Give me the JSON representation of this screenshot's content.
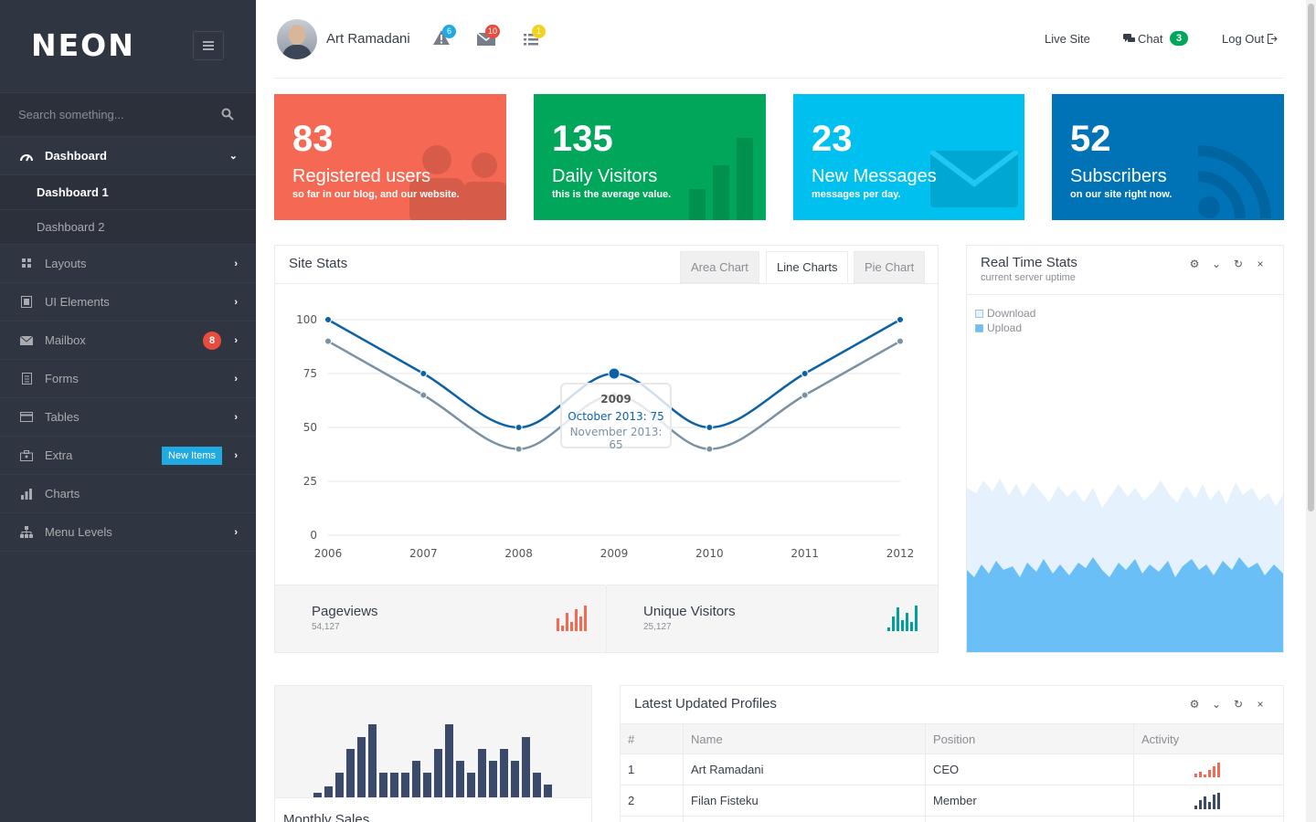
{
  "brand": {
    "logo": "NEON"
  },
  "search": {
    "placeholder": "Search something..."
  },
  "sidebar": {
    "items": [
      {
        "label": "Dashboard"
      },
      {
        "label": "Dashboard 1"
      },
      {
        "label": "Dashboard 2"
      },
      {
        "label": "Layouts"
      },
      {
        "label": "UI Elements"
      },
      {
        "label": "Mailbox",
        "badge": "8"
      },
      {
        "label": "Forms"
      },
      {
        "label": "Tables"
      },
      {
        "label": "Extra",
        "badge": "New Items"
      },
      {
        "label": "Charts"
      },
      {
        "label": "Menu Levels"
      }
    ]
  },
  "header": {
    "user_name": "Art Ramadani",
    "alerts_count": "6",
    "messages_count": "10",
    "tasks_count": "1",
    "live_site": "Live Site",
    "chat": "Chat",
    "chat_count": "3",
    "logout": "Log Out"
  },
  "tiles": [
    {
      "number": "83",
      "title": "Registered users",
      "subtitle": "so far in our blog, and our website.",
      "color": "#f56954"
    },
    {
      "number": "135",
      "title": "Daily Visitors",
      "subtitle": "this is the average value.",
      "color": "#00a65a"
    },
    {
      "number": "23",
      "title": "New Messages",
      "subtitle": "messages per day.",
      "color": "#00c0ef"
    },
    {
      "number": "52",
      "title": "Subscribers",
      "subtitle": "on our site right now.",
      "color": "#0073b7"
    }
  ],
  "site_stats": {
    "title": "Site Stats",
    "tabs": [
      "Area Chart",
      "Line Charts",
      "Pie Chart"
    ],
    "active_tab": "Line Charts",
    "tooltip": {
      "title": "2009",
      "line1": "October 2013: 75",
      "line2": "November 2013: 65"
    },
    "pageviews_label": "Pageviews",
    "pageviews_value": "54,127",
    "unique_label": "Unique Visitors",
    "unique_value": "25,127"
  },
  "chart_data": {
    "type": "line",
    "x": [
      "2006",
      "2007",
      "2008",
      "2009",
      "2010",
      "2011",
      "2012"
    ],
    "y_ticks": [
      "100",
      "75",
      "50",
      "25",
      "0"
    ],
    "ylim": [
      0,
      100
    ],
    "series": [
      {
        "name": "October 2013",
        "values": [
          100,
          75,
          50,
          75,
          50,
          75,
          100
        ],
        "color": "#0b62a4"
      },
      {
        "name": "November 2013",
        "values": [
          90,
          65,
          40,
          65,
          40,
          65,
          90
        ],
        "color": "#7a92a3"
      }
    ],
    "grid": true
  },
  "realtime": {
    "title": "Real Time Stats",
    "subtitle": "current server uptime",
    "legend": [
      "Download",
      "Upload"
    ]
  },
  "monthly_sales": {
    "title": "Monthly Sales"
  },
  "profiles": {
    "title": "Latest Updated Profiles",
    "columns": [
      "#",
      "Name",
      "Position",
      "Activity"
    ],
    "rows": [
      {
        "num": "1",
        "name": "Art Ramadani",
        "position": "CEO"
      },
      {
        "num": "2",
        "name": "Filan Fisteku",
        "position": "Member"
      }
    ]
  }
}
